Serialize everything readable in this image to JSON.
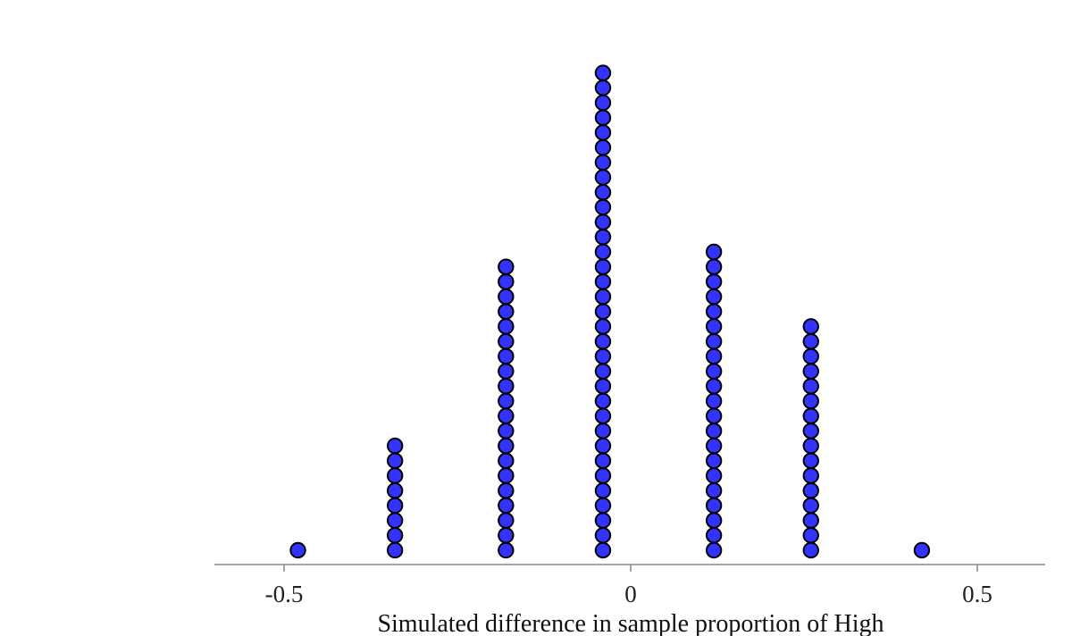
{
  "chart_data": {
    "type": "dotplot",
    "title": "",
    "xlabel": "Simulated difference in sample proportion of High",
    "ylabel": "",
    "xlim": [
      -0.6,
      0.6
    ],
    "xticks": [
      -0.5,
      0,
      0.5
    ],
    "xtick_labels": [
      "-0.5",
      "0",
      "0.5"
    ],
    "grid": false,
    "x": [
      -0.48,
      -0.34,
      -0.18,
      -0.04,
      0.12,
      0.26,
      0.42
    ],
    "counts": [
      1,
      8,
      20,
      33,
      21,
      16,
      1
    ],
    "dot_color": "#3333ff",
    "dot_edge_color": "#000000"
  }
}
